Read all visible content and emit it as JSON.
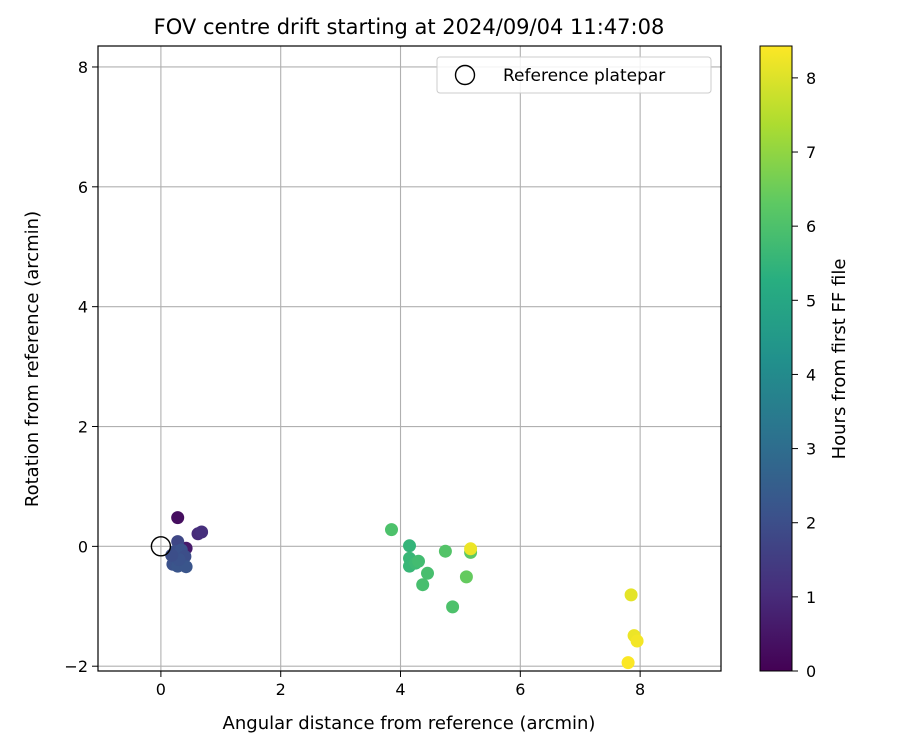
{
  "chart_data": {
    "type": "scatter",
    "title": "FOV centre drift starting at 2024/09/04 11:47:08",
    "xlabel": "Angular distance from reference (arcmin)",
    "ylabel": "Rotation from reference (arcmin)",
    "xlim": [
      -1.05,
      9.35
    ],
    "ylim": [
      -2.08,
      8.35
    ],
    "xticks": [
      0,
      2,
      4,
      6,
      8
    ],
    "yticks": [
      -2,
      0,
      2,
      4,
      6,
      8
    ],
    "xtick_labels": [
      "0",
      "2",
      "4",
      "6",
      "8"
    ],
    "ytick_labels": [
      "−2",
      "0",
      "2",
      "4",
      "6",
      "8"
    ],
    "grid": true,
    "legend": {
      "placement": "top-right",
      "entries": [
        "Reference platepar"
      ]
    },
    "reference_point": {
      "x": 0,
      "y": 0
    },
    "colorbar": {
      "label": "Hours from first FF file",
      "min": 0,
      "max": 8.43,
      "ticks": [
        0,
        1,
        2,
        3,
        4,
        5,
        6,
        7,
        8
      ],
      "tick_labels": [
        "0",
        "1",
        "2",
        "3",
        "4",
        "5",
        "6",
        "7",
        "8"
      ],
      "colormap": "viridis"
    },
    "points": [
      {
        "x": 0.28,
        "y": 0.48,
        "hours": 0.3
      },
      {
        "x": 0.42,
        "y": -0.03,
        "hours": 0.6
      },
      {
        "x": 0.62,
        "y": 0.21,
        "hours": 1.0
      },
      {
        "x": 0.68,
        "y": 0.24,
        "hours": 1.1
      },
      {
        "x": 0.28,
        "y": 0.08,
        "hours": 1.8
      },
      {
        "x": 0.24,
        "y": -0.08,
        "hours": 2.0
      },
      {
        "x": 0.34,
        "y": -0.06,
        "hours": 2.1
      },
      {
        "x": 0.4,
        "y": -0.17,
        "hours": 2.0
      },
      {
        "x": 0.2,
        "y": -0.3,
        "hours": 2.1
      },
      {
        "x": 0.28,
        "y": -0.33,
        "hours": 2.2
      },
      {
        "x": 0.42,
        "y": -0.34,
        "hours": 2.2
      },
      {
        "x": 0.3,
        "y": -0.22,
        "hours": 2.1
      },
      {
        "x": 0.18,
        "y": -0.15,
        "hours": 2.0
      },
      {
        "x": 3.85,
        "y": 0.28,
        "hours": 6.0
      },
      {
        "x": 4.15,
        "y": 0.01,
        "hours": 5.5
      },
      {
        "x": 4.15,
        "y": -0.2,
        "hours": 5.6
      },
      {
        "x": 4.15,
        "y": -0.33,
        "hours": 5.6
      },
      {
        "x": 4.25,
        "y": -0.28,
        "hours": 5.7
      },
      {
        "x": 4.3,
        "y": -0.25,
        "hours": 5.8
      },
      {
        "x": 4.37,
        "y": -0.64,
        "hours": 5.9
      },
      {
        "x": 4.45,
        "y": -0.45,
        "hours": 5.9
      },
      {
        "x": 4.75,
        "y": -0.08,
        "hours": 6.1
      },
      {
        "x": 4.87,
        "y": -1.01,
        "hours": 6.0
      },
      {
        "x": 5.1,
        "y": -0.51,
        "hours": 6.4
      },
      {
        "x": 5.17,
        "y": -0.1,
        "hours": 6.3
      },
      {
        "x": 5.17,
        "y": -0.04,
        "hours": 8.2
      },
      {
        "x": 7.85,
        "y": -0.81,
        "hours": 8.1
      },
      {
        "x": 7.9,
        "y": -1.49,
        "hours": 8.2
      },
      {
        "x": 7.95,
        "y": -1.58,
        "hours": 8.3
      },
      {
        "x": 7.8,
        "y": -1.94,
        "hours": 8.4
      }
    ]
  }
}
